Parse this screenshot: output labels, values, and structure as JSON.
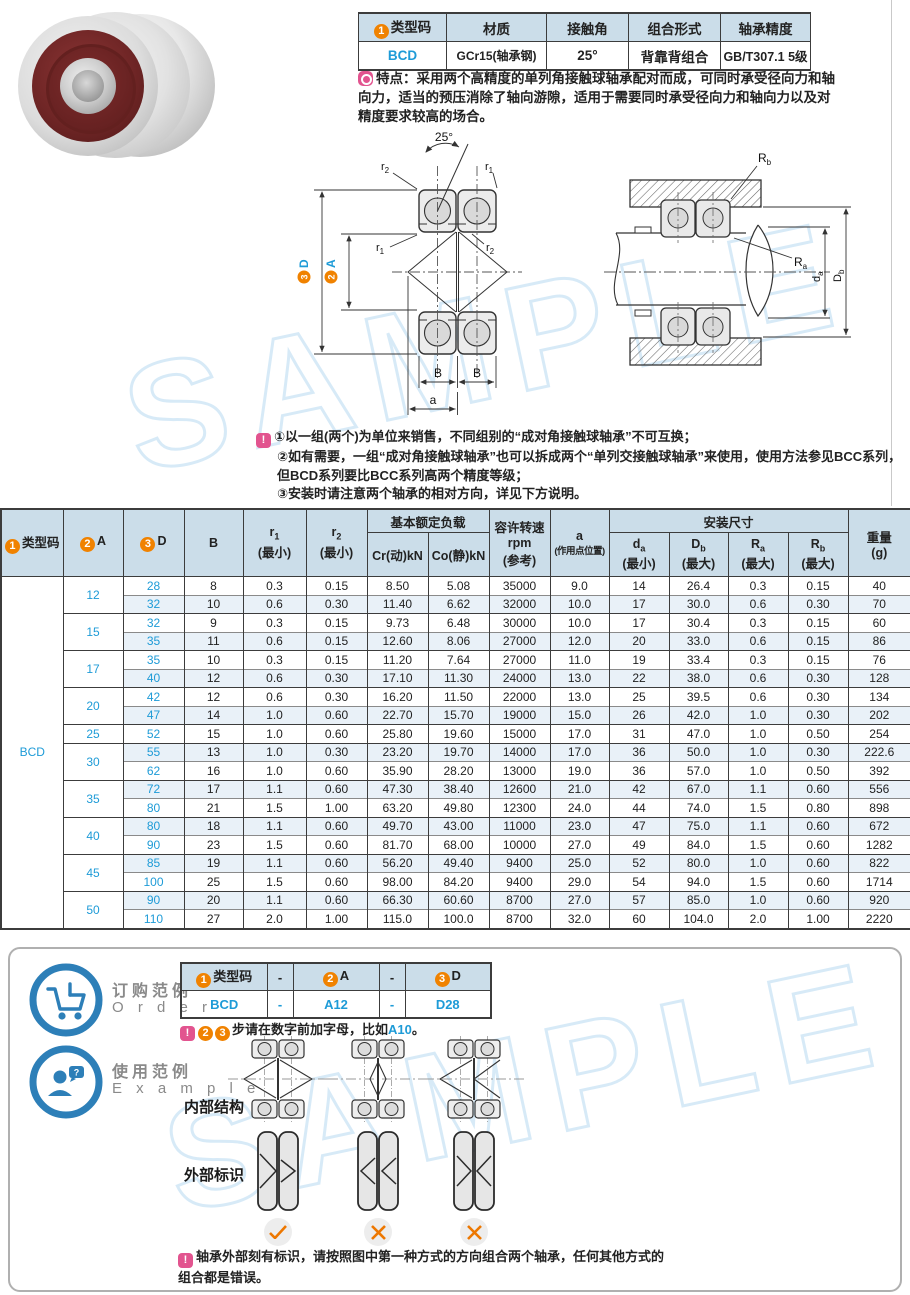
{
  "watermark": "SAMPLE",
  "colors": {
    "accent_blue": "#1e9bd7",
    "badge_orange": "#f08200",
    "note_pink": "#e2548f",
    "header_bg": "#cbdde9",
    "alt_row_bg": "#e9f1f8",
    "mark_orange": "#ed7700",
    "icon_blue": "#2d7fb8"
  },
  "info_table": {
    "headers": [
      {
        "num": "1",
        "label": "类型码"
      },
      {
        "label": "材质"
      },
      {
        "label": "接触角"
      },
      {
        "label": "组合形式"
      },
      {
        "label": "轴承精度"
      }
    ],
    "values": [
      "BCD",
      "GCr15(轴承钢)",
      "25°",
      "背靠背组合",
      "GB/T307.1 5级"
    ]
  },
  "feature": {
    "label": "特点：",
    "text": "采用两个高精度的单列角接触球轴承配对而成，可同时承受径向力和轴向力，适当的预压消除了轴向游隙，适用于需要同时承受径向力和轴向力以及对精度要求较高的场合。"
  },
  "notes": [
    "①以一组(两个)为单位来销售，不同组别的“成对角接触球轴承”不可互换；",
    "②如有需要，一组“成对角接触球轴承”也可以拆成两个“单列交接触球轴承”来使用，使用方法参见BCC系列，但BCD系列要比BCC系列高两个精度等级；",
    "③安装时请注意两个轴承的相对方向，详见下方说明。"
  ],
  "diagrams": {
    "left": {
      "angle": "25°",
      "r_base": "r",
      "r1_sub": "1",
      "r2_sub": "2",
      "dimD_num": "3",
      "dimD": "D",
      "dimA_num": "2",
      "dimA": "A",
      "b": "B",
      "a": "a"
    },
    "right": {
      "rb_base": "R",
      "rb_sub": "b",
      "ra_base": "R",
      "ra_sub": "a",
      "da_base": "d",
      "da_sub": "a",
      "db_base": "D",
      "db_sub": "b"
    }
  },
  "main_table": {
    "type_code": "BCD",
    "headers": {
      "col_type": {
        "num": "1",
        "label": "类型码"
      },
      "col_a": {
        "num": "2",
        "label": "A"
      },
      "col_d": {
        "num": "3",
        "label": "D"
      },
      "col_b": "B",
      "col_r1": {
        "base": "r",
        "sub": "1",
        "line2": "(最小)"
      },
      "col_r2": {
        "base": "r",
        "sub": "2",
        "line2": "(最小)"
      },
      "group_load": "基本额定负载",
      "col_cr": "Cr(动)kN",
      "col_co": "Co(静)kN",
      "col_rpm": {
        "line1": "容许转速",
        "line2": "rpm",
        "line3": "(参考)"
      },
      "col_apos": {
        "line1": "a",
        "line2": "(作用点位置)"
      },
      "group_mount": "安装尺寸",
      "col_da": {
        "base": "d",
        "sub": "a",
        "line2": "(最小)"
      },
      "col_db": {
        "base": "D",
        "sub": "b",
        "line2": "(最大)"
      },
      "col_ra": {
        "base": "R",
        "sub": "a",
        "line2": "(最大)"
      },
      "col_rb": {
        "base": "R",
        "sub": "b",
        "line2": "(最大)"
      },
      "col_weight": {
        "line1": "重量",
        "line2": "(g)"
      }
    },
    "groups": [
      {
        "a": "12",
        "rows": [
          {
            "d": "28",
            "b": "8",
            "r1": "0.3",
            "r2": "0.15",
            "cr": "8.50",
            "co": "5.08",
            "rpm": "35000",
            "apos": "9.0",
            "da": "14",
            "db": "26.4",
            "ra": "0.3",
            "rb": "0.15",
            "w": "40"
          },
          {
            "d": "32",
            "b": "10",
            "r1": "0.6",
            "r2": "0.30",
            "cr": "11.40",
            "co": "6.62",
            "rpm": "32000",
            "apos": "10.0",
            "da": "17",
            "db": "30.0",
            "ra": "0.6",
            "rb": "0.30",
            "w": "70"
          }
        ]
      },
      {
        "a": "15",
        "rows": [
          {
            "d": "32",
            "b": "9",
            "r1": "0.3",
            "r2": "0.15",
            "cr": "9.73",
            "co": "6.48",
            "rpm": "30000",
            "apos": "10.0",
            "da": "17",
            "db": "30.4",
            "ra": "0.3",
            "rb": "0.15",
            "w": "60"
          },
          {
            "d": "35",
            "b": "11",
            "r1": "0.6",
            "r2": "0.15",
            "cr": "12.60",
            "co": "8.06",
            "rpm": "27000",
            "apos": "12.0",
            "da": "20",
            "db": "33.0",
            "ra": "0.6",
            "rb": "0.15",
            "w": "86"
          }
        ]
      },
      {
        "a": "17",
        "rows": [
          {
            "d": "35",
            "b": "10",
            "r1": "0.3",
            "r2": "0.15",
            "cr": "11.20",
            "co": "7.64",
            "rpm": "27000",
            "apos": "11.0",
            "da": "19",
            "db": "33.4",
            "ra": "0.3",
            "rb": "0.15",
            "w": "76"
          },
          {
            "d": "40",
            "b": "12",
            "r1": "0.6",
            "r2": "0.30",
            "cr": "17.10",
            "co": "11.30",
            "rpm": "24000",
            "apos": "13.0",
            "da": "22",
            "db": "38.0",
            "ra": "0.6",
            "rb": "0.30",
            "w": "128"
          }
        ]
      },
      {
        "a": "20",
        "rows": [
          {
            "d": "42",
            "b": "12",
            "r1": "0.6",
            "r2": "0.30",
            "cr": "16.20",
            "co": "11.50",
            "rpm": "22000",
            "apos": "13.0",
            "da": "25",
            "db": "39.5",
            "ra": "0.6",
            "rb": "0.30",
            "w": "134"
          },
          {
            "d": "47",
            "b": "14",
            "r1": "1.0",
            "r2": "0.60",
            "cr": "22.70",
            "co": "15.70",
            "rpm": "19000",
            "apos": "15.0",
            "da": "26",
            "db": "42.0",
            "ra": "1.0",
            "rb": "0.30",
            "w": "202"
          }
        ]
      },
      {
        "a": "25",
        "rows": [
          {
            "d": "52",
            "b": "15",
            "r1": "1.0",
            "r2": "0.60",
            "cr": "25.80",
            "co": "19.60",
            "rpm": "15000",
            "apos": "17.0",
            "da": "31",
            "db": "47.0",
            "ra": "1.0",
            "rb": "0.50",
            "w": "254"
          }
        ]
      },
      {
        "a": "30",
        "rows": [
          {
            "d": "55",
            "b": "13",
            "r1": "1.0",
            "r2": "0.30",
            "cr": "23.20",
            "co": "19.70",
            "rpm": "14000",
            "apos": "17.0",
            "da": "36",
            "db": "50.0",
            "ra": "1.0",
            "rb": "0.30",
            "w": "222.6"
          },
          {
            "d": "62",
            "b": "16",
            "r1": "1.0",
            "r2": "0.60",
            "cr": "35.90",
            "co": "28.20",
            "rpm": "13000",
            "apos": "19.0",
            "da": "36",
            "db": "57.0",
            "ra": "1.0",
            "rb": "0.50",
            "w": "392"
          }
        ]
      },
      {
        "a": "35",
        "rows": [
          {
            "d": "72",
            "b": "17",
            "r1": "1.1",
            "r2": "0.60",
            "cr": "47.30",
            "co": "38.40",
            "rpm": "12600",
            "apos": "21.0",
            "da": "42",
            "db": "67.0",
            "ra": "1.1",
            "rb": "0.60",
            "w": "556"
          },
          {
            "d": "80",
            "b": "21",
            "r1": "1.5",
            "r2": "1.00",
            "cr": "63.20",
            "co": "49.80",
            "rpm": "12300",
            "apos": "24.0",
            "da": "44",
            "db": "74.0",
            "ra": "1.5",
            "rb": "0.80",
            "w": "898"
          }
        ]
      },
      {
        "a": "40",
        "rows": [
          {
            "d": "80",
            "b": "18",
            "r1": "1.1",
            "r2": "0.60",
            "cr": "49.70",
            "co": "43.00",
            "rpm": "11000",
            "apos": "23.0",
            "da": "47",
            "db": "75.0",
            "ra": "1.1",
            "rb": "0.60",
            "w": "672"
          },
          {
            "d": "90",
            "b": "23",
            "r1": "1.5",
            "r2": "0.60",
            "cr": "81.70",
            "co": "68.00",
            "rpm": "10000",
            "apos": "27.0",
            "da": "49",
            "db": "84.0",
            "ra": "1.5",
            "rb": "0.60",
            "w": "1282"
          }
        ]
      },
      {
        "a": "45",
        "rows": [
          {
            "d": "85",
            "b": "19",
            "r1": "1.1",
            "r2": "0.60",
            "cr": "56.20",
            "co": "49.40",
            "rpm": "9400",
            "apos": "25.0",
            "da": "52",
            "db": "80.0",
            "ra": "1.0",
            "rb": "0.60",
            "w": "822"
          },
          {
            "d": "100",
            "b": "25",
            "r1": "1.5",
            "r2": "0.60",
            "cr": "98.00",
            "co": "84.20",
            "rpm": "9400",
            "apos": "29.0",
            "da": "54",
            "db": "94.0",
            "ra": "1.5",
            "rb": "0.60",
            "w": "1714"
          }
        ]
      },
      {
        "a": "50",
        "rows": [
          {
            "d": "90",
            "b": "20",
            "r1": "1.1",
            "r2": "0.60",
            "cr": "66.30",
            "co": "60.60",
            "rpm": "8700",
            "apos": "27.0",
            "da": "57",
            "db": "85.0",
            "ra": "1.0",
            "rb": "0.60",
            "w": "920"
          },
          {
            "d": "110",
            "b": "27",
            "r1": "2.0",
            "r2": "1.00",
            "cr": "115.0",
            "co": "100.0",
            "rpm": "8700",
            "apos": "32.0",
            "da": "60",
            "db": "104.0",
            "ra": "2.0",
            "rb": "1.00",
            "w": "2220"
          }
        ]
      }
    ]
  },
  "order": {
    "icon": "cart-icon",
    "title_cn": "订购范例",
    "title_en": "O r d e r",
    "table": {
      "h_type": {
        "num": "1",
        "label": "类型码"
      },
      "h_a": {
        "num": "2",
        "label": "A"
      },
      "h_d": {
        "num": "3",
        "label": "D"
      },
      "dash": "-",
      "v_type": "BCD",
      "v_dash": "-",
      "v_a": "A12",
      "v_d": "D28"
    },
    "note": {
      "num1": "2",
      "num2": "3",
      "text_before": "步请在数字前加字母，比如",
      "code": "A10",
      "text_after": "。"
    }
  },
  "example": {
    "icon": "person-question-icon",
    "title_cn": "使用范例",
    "title_en": "E x a m p l e",
    "row1_label": "内部结构",
    "row2_label": "外部标识",
    "variants": [
      {
        "name": "back-to-back",
        "mark": "check"
      },
      {
        "name": "face-to-face",
        "mark": "cross"
      },
      {
        "name": "tandem",
        "mark": "cross"
      }
    ],
    "note": "轴承外部刻有标识，请按照图中第一种方式的方向组合两个轴承，任何其他方式的组合都是错误。"
  }
}
